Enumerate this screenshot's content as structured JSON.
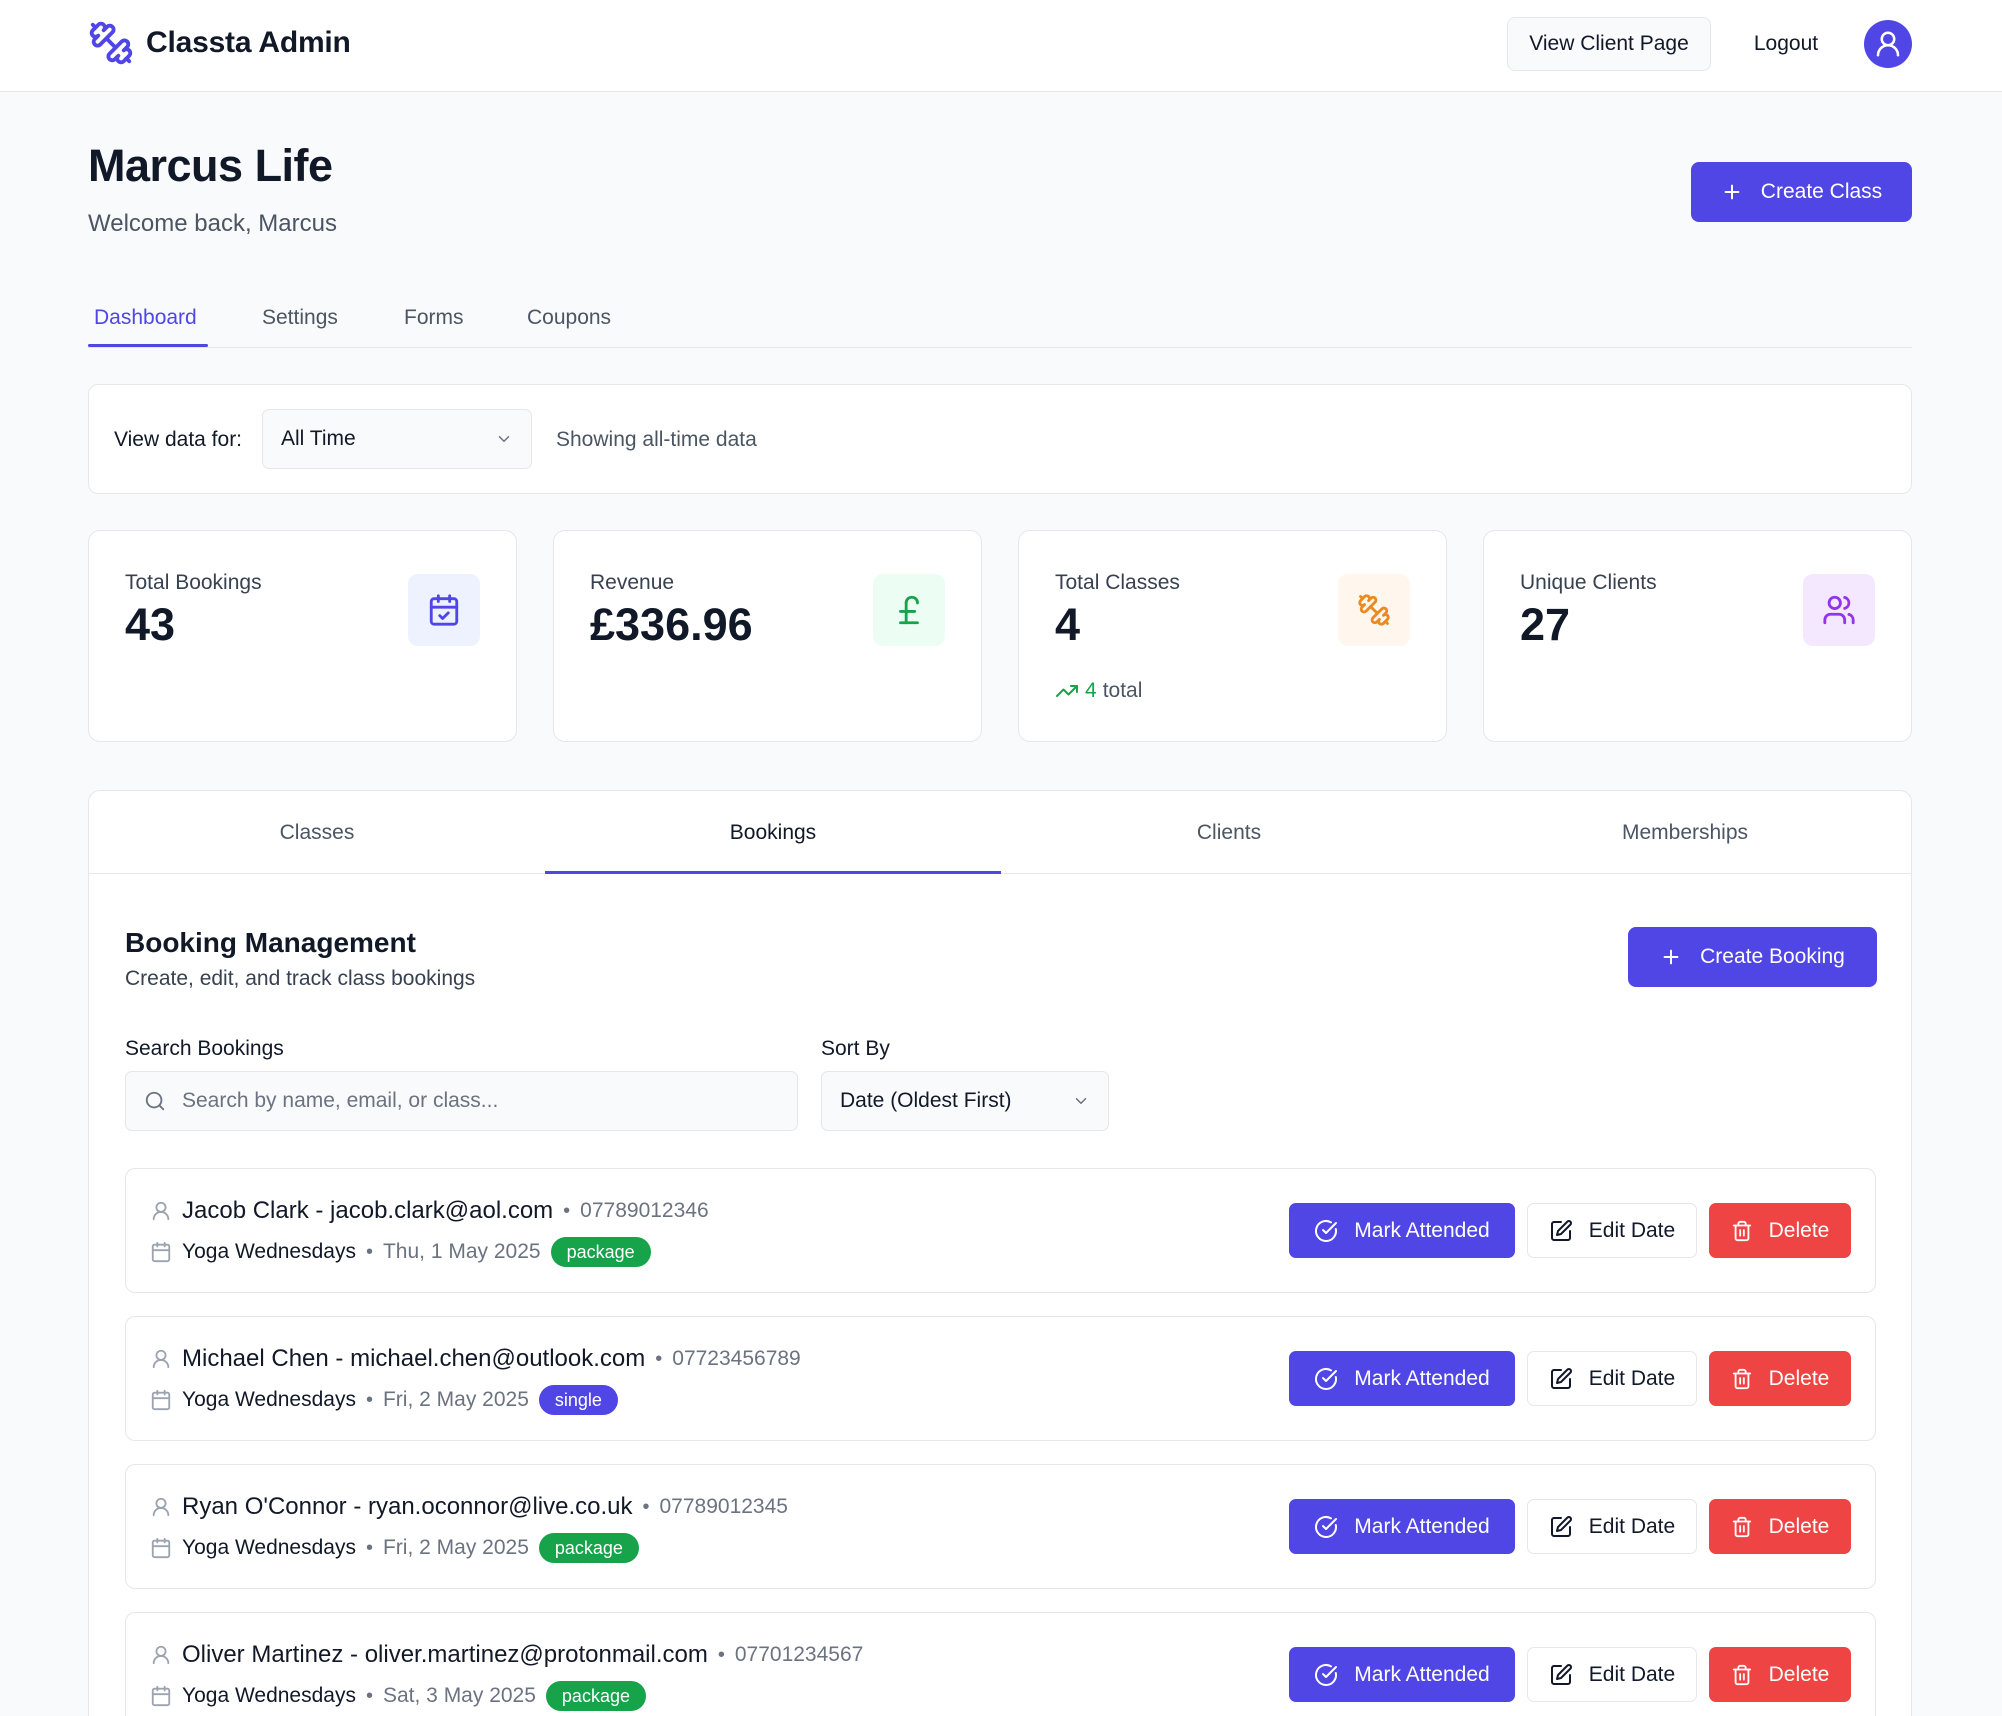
{
  "app": {
    "title": "Classta Admin",
    "view_client_label": "View Client Page",
    "logout_label": "Logout"
  },
  "header": {
    "title": "Marcus Life",
    "subtitle": "Welcome back, Marcus",
    "create_class_label": "Create Class"
  },
  "top_tabs": [
    "Dashboard",
    "Settings",
    "Forms",
    "Coupons"
  ],
  "top_tab_active": "Dashboard",
  "filter": {
    "label": "View data for:",
    "selected": "All Time",
    "note": "Showing all-time data"
  },
  "stats": [
    {
      "label": "Total Bookings",
      "value": "43",
      "icon": "calendar-check-icon"
    },
    {
      "label": "Revenue",
      "value": "£336.96",
      "icon": "pound-icon"
    },
    {
      "label": "Total Classes",
      "value": "4",
      "icon": "dumbbell-icon",
      "trend_value": "4",
      "trend_text": "total"
    },
    {
      "label": "Unique Clients",
      "value": "27",
      "icon": "users-icon"
    }
  ],
  "panel_tabs": [
    "Classes",
    "Bookings",
    "Clients",
    "Memberships"
  ],
  "panel_tab_active": "Bookings",
  "bookings_section": {
    "title": "Booking Management",
    "subtitle": "Create, edit, and track class bookings",
    "create_label": "Create Booking",
    "search_label": "Search Bookings",
    "search_placeholder": "Search by name, email, or class...",
    "sort_label": "Sort By",
    "sort_selected": "Date (Oldest First)"
  },
  "booking_actions": {
    "attend_label": "Mark Attended",
    "edit_label": "Edit Date",
    "delete_label": "Delete"
  },
  "bookings": [
    {
      "name_email": "Jacob Clark - jacob.clark@aol.com",
      "phone": "07789012346",
      "class": "Yoga Wednesdays",
      "date": "Thu, 1 May 2025",
      "type": "package"
    },
    {
      "name_email": "Michael Chen - michael.chen@outlook.com",
      "phone": "07723456789",
      "class": "Yoga Wednesdays",
      "date": "Fri, 2 May 2025",
      "type": "single"
    },
    {
      "name_email": "Ryan O'Connor - ryan.oconnor@live.co.uk",
      "phone": "07789012345",
      "class": "Yoga Wednesdays",
      "date": "Fri, 2 May 2025",
      "type": "package"
    },
    {
      "name_email": "Oliver Martinez - oliver.martinez@protonmail.com",
      "phone": "07701234567",
      "class": "Yoga Wednesdays",
      "date": "Sat, 3 May 2025",
      "type": "package"
    }
  ],
  "colors": {
    "primary": "#4f46e5",
    "danger": "#ef4444",
    "package_badge": "#16a34a",
    "single_badge": "#4f46e5",
    "revenue_icon": "#16a34a",
    "classes_icon": "#ea8a1f",
    "clients_icon": "#9333ea"
  }
}
